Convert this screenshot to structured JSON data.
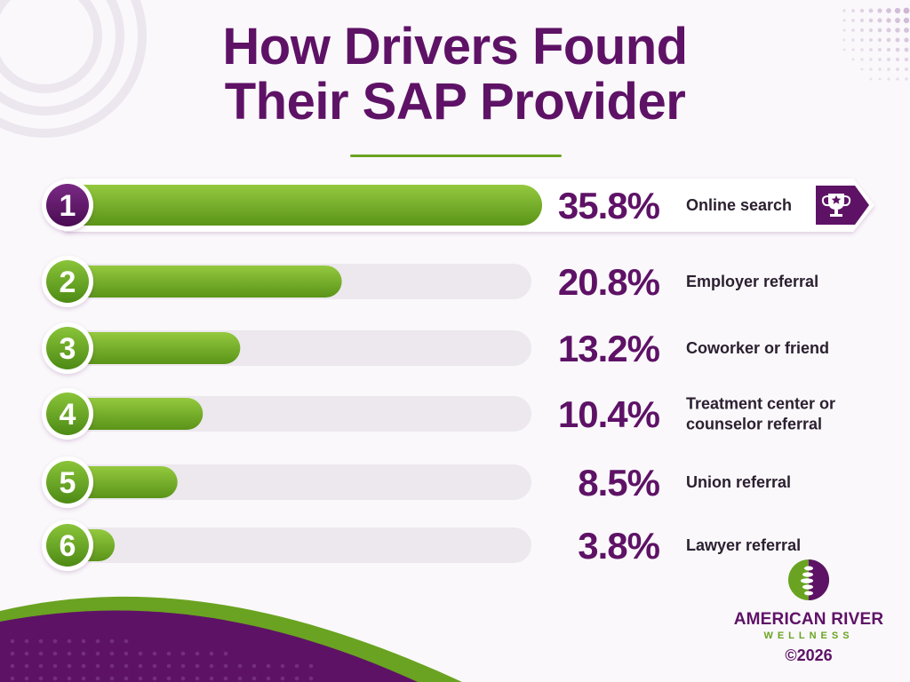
{
  "title": {
    "line1": "How Drivers Found",
    "line2": "Their SAP Provider"
  },
  "chart_data": {
    "type": "bar",
    "orientation": "horizontal",
    "title": "How Drivers Found Their SAP Provider",
    "ranks": [
      "1",
      "2",
      "3",
      "4",
      "5",
      "6"
    ],
    "categories": [
      "Online search",
      "Employer referral",
      "Coworker or friend",
      "Treatment center or counselor referral",
      "Union referral",
      "Lawyer referral"
    ],
    "category_lines": [
      [
        "Online search"
      ],
      [
        "Employer referral"
      ],
      [
        "Coworker or friend"
      ],
      [
        "Treatment center or",
        "counselor referral"
      ],
      [
        "Union referral"
      ],
      [
        "Lawyer referral"
      ]
    ],
    "values": [
      35.8,
      20.8,
      13.2,
      10.4,
      8.5,
      3.8
    ],
    "value_labels": [
      "35.8%",
      "20.8%",
      "13.2%",
      "10.4%",
      "8.5%",
      "3.8%"
    ],
    "unit": "%",
    "highlight_rank": 1,
    "colors": {
      "bar": "#7ab52a",
      "bar_dark": "#5a9418",
      "track": "#ece8ee",
      "accent": "#5e1266",
      "text": "#2b2030"
    }
  },
  "badge_icon": "trophy-icon",
  "logo": {
    "icon": "spine-logo-icon",
    "name": "AMERICAN RIVER",
    "sub": "WELLNESS",
    "copyright": "©2026"
  }
}
